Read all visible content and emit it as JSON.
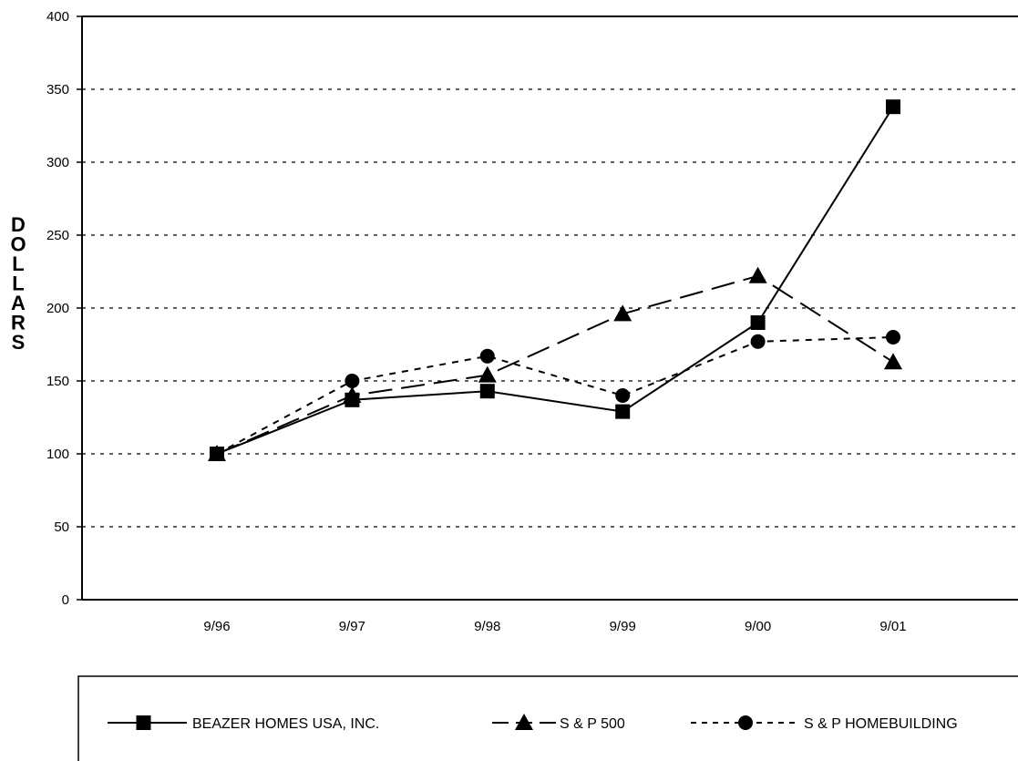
{
  "chart_data": {
    "type": "line",
    "title": "",
    "xlabel": "",
    "ylabel": "DOLLARS",
    "categories": [
      "9/96",
      "9/97",
      "9/98",
      "9/99",
      "9/00",
      "9/01"
    ],
    "ylim": [
      0,
      400
    ],
    "yticks": [
      0,
      50,
      100,
      150,
      200,
      250,
      300,
      350,
      400
    ],
    "grid": "horizontal dotted",
    "legend_position": "bottom",
    "series": [
      {
        "name": "BEAZER HOMES USA, INC.",
        "values": [
          100,
          137,
          143,
          129,
          190,
          338
        ],
        "line_style": "solid",
        "marker": "square",
        "color": "#000000"
      },
      {
        "name": "S & P 500",
        "values": [
          100,
          140,
          154,
          196,
          222,
          163
        ],
        "line_style": "long-dash",
        "marker": "triangle",
        "color": "#000000"
      },
      {
        "name": "S & P HOMEBUILDING",
        "values": [
          100,
          150,
          167,
          140,
          177,
          180
        ],
        "line_style": "short-dash",
        "marker": "circle",
        "color": "#000000"
      }
    ]
  }
}
